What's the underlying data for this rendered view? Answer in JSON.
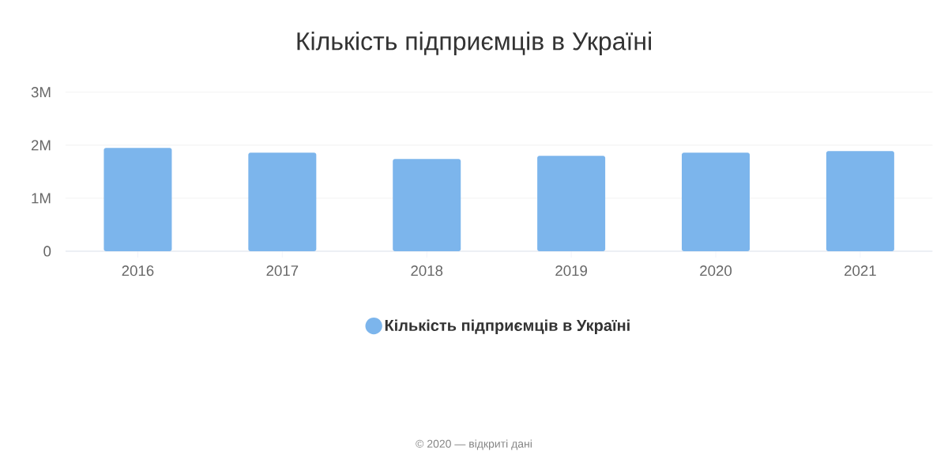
{
  "chart_data": {
    "type": "bar",
    "title": "Кількість підприємців в Україні",
    "categories": [
      "2016",
      "2017",
      "2018",
      "2019",
      "2020",
      "2021"
    ],
    "series": [
      {
        "name": "Кількість підприємців в Україні",
        "color": "#7cb5ec",
        "values": [
          1950000,
          1860000,
          1740000,
          1800000,
          1860000,
          1890000
        ]
      }
    ],
    "ylim": [
      0,
      3000000
    ],
    "yticks": [
      {
        "value": 0,
        "label": "0"
      },
      {
        "value": 1000000,
        "label": "1M"
      },
      {
        "value": 2000000,
        "label": "2M"
      },
      {
        "value": 3000000,
        "label": "3M"
      }
    ],
    "grid": "y",
    "legend": "bottom",
    "annotations": [
      "© 2020 — відкриті дані"
    ]
  }
}
